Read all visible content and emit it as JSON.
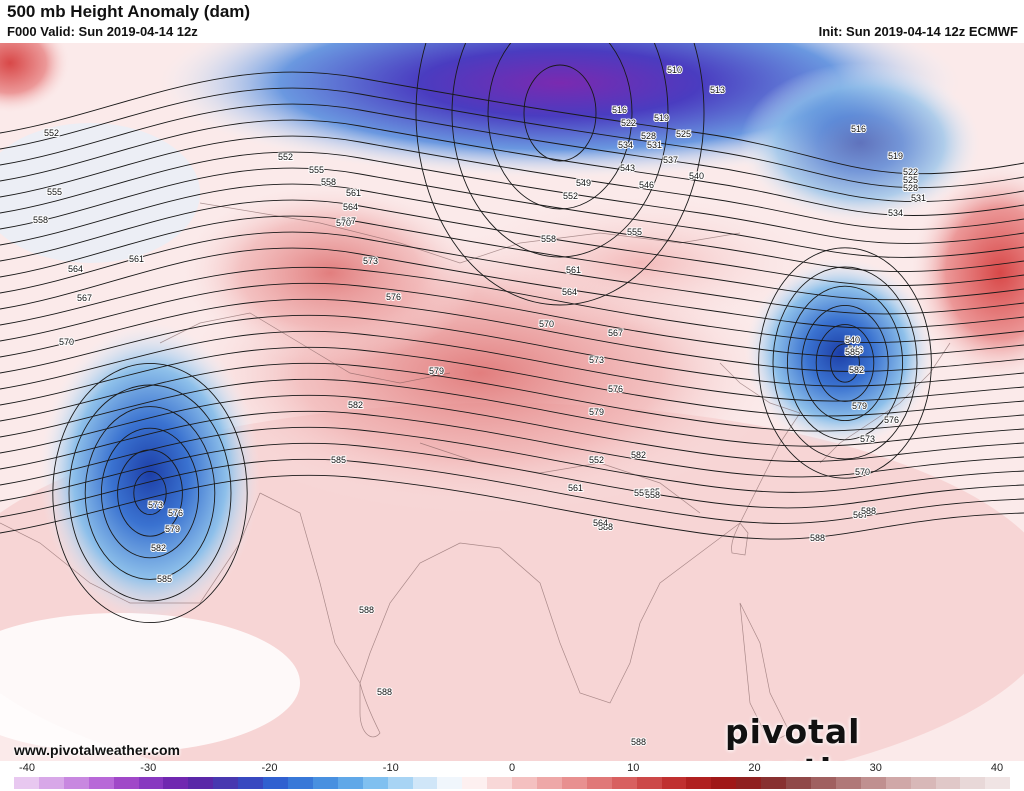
{
  "header": {
    "title": "500 mb Height Anomaly (dam)",
    "valid": "F000 Valid: Sun 2019-04-14 12z",
    "init": "Init: Sun 2019-04-14 12z ECMWF"
  },
  "footer": {
    "website": "www.pivotalweather.com",
    "logo_text": "pivotal weather"
  },
  "colorbar": {
    "ticks": [
      "-40",
      "-30",
      "-20",
      "-10",
      "0",
      "10",
      "20",
      "30",
      "40"
    ],
    "colors": [
      "#e8c8f0",
      "#d8a8e8",
      "#c888e0",
      "#b868d8",
      "#a048c8",
      "#8838c0",
      "#7028b0",
      "#5a28a8",
      "#4838b0",
      "#3848c0",
      "#3060d0",
      "#3878d8",
      "#4890e0",
      "#60a8e8",
      "#80c0f0",
      "#a8d4f4",
      "#d0e6f8",
      "#f0f6fc",
      "#fdf0f0",
      "#f8d8d8",
      "#f4c0c0",
      "#eea8a8",
      "#e89090",
      "#e07878",
      "#d86060",
      "#cc4848",
      "#c03030",
      "#b02020",
      "#a01818",
      "#902020",
      "#883030",
      "#904848",
      "#a06060",
      "#b07878",
      "#c09090",
      "#d0a8a8",
      "#d8b8b8",
      "#e0c8c8",
      "#e8d8d8",
      "#f0e4e4"
    ]
  },
  "contour_labels": [
    {
      "text": "510"
    },
    {
      "text": "513"
    },
    {
      "text": "516"
    },
    {
      "text": "519"
    },
    {
      "text": "522"
    },
    {
      "text": "525"
    },
    {
      "text": "528"
    },
    {
      "text": "531"
    },
    {
      "text": "534"
    },
    {
      "text": "537"
    },
    {
      "text": "540"
    },
    {
      "text": "543"
    },
    {
      "text": "546"
    },
    {
      "text": "549"
    },
    {
      "text": "552"
    },
    {
      "text": "555"
    },
    {
      "text": "558"
    },
    {
      "text": "561"
    },
    {
      "text": "564"
    },
    {
      "text": "567"
    },
    {
      "text": "570"
    },
    {
      "text": "573"
    },
    {
      "text": "576"
    },
    {
      "text": "579"
    },
    {
      "text": "582"
    },
    {
      "text": "585"
    },
    {
      "text": "588"
    },
    {
      "text": "516"
    },
    {
      "text": "519"
    },
    {
      "text": "522"
    },
    {
      "text": "525"
    },
    {
      "text": "528"
    },
    {
      "text": "531"
    },
    {
      "text": "534"
    },
    {
      "text": "540"
    },
    {
      "text": "546"
    },
    {
      "text": "552"
    },
    {
      "text": "555"
    },
    {
      "text": "558"
    },
    {
      "text": "561"
    },
    {
      "text": "564"
    },
    {
      "text": "567"
    },
    {
      "text": "570"
    },
    {
      "text": "573"
    },
    {
      "text": "576"
    },
    {
      "text": "579"
    },
    {
      "text": "582"
    },
    {
      "text": "585"
    },
    {
      "text": "588"
    },
    {
      "text": "552"
    },
    {
      "text": "555"
    },
    {
      "text": "558"
    },
    {
      "text": "561"
    },
    {
      "text": "564"
    },
    {
      "text": "567"
    },
    {
      "text": "570"
    },
    {
      "text": "573"
    },
    {
      "text": "576"
    },
    {
      "text": "579"
    },
    {
      "text": "582"
    },
    {
      "text": "585"
    },
    {
      "text": "588"
    },
    {
      "text": "552"
    },
    {
      "text": "555"
    },
    {
      "text": "558"
    },
    {
      "text": "561"
    },
    {
      "text": "564"
    },
    {
      "text": "567"
    },
    {
      "text": "570"
    },
    {
      "text": "573"
    },
    {
      "text": "576"
    },
    {
      "text": "579"
    },
    {
      "text": "582"
    },
    {
      "text": "585"
    },
    {
      "text": "588"
    },
    {
      "text": "588"
    },
    {
      "text": "588"
    }
  ]
}
